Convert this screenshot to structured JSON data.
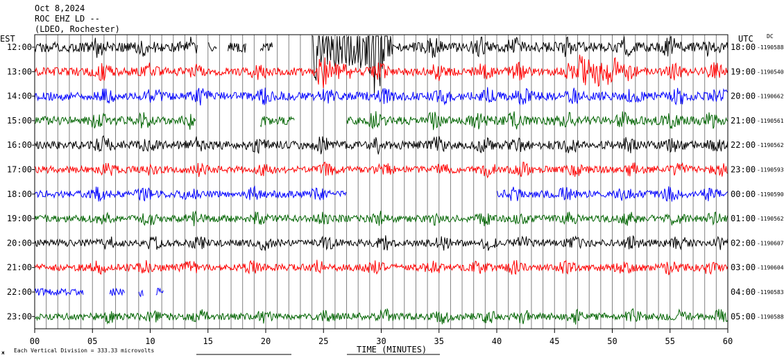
{
  "header": {
    "date": "Oct 8,2024",
    "station": "ROC EHZ LD --",
    "network": "(LDEO, Rochester)"
  },
  "left_zone": "EST",
  "right_zone": "UTC",
  "dc_label": "DC",
  "footer": {
    "scale_note": "Each Vertical Division = 333.33 microvolts",
    "corner_mark": "ж"
  },
  "chart_data": {
    "type": "line",
    "title": "",
    "xlabel": "TIME (MINUTES)",
    "ylabel": "",
    "xlim": [
      0,
      60
    ],
    "x_ticks": [
      "00",
      "05",
      "10",
      "15",
      "20",
      "25",
      "30",
      "35",
      "40",
      "45",
      "50",
      "55",
      "60"
    ],
    "grid": "vertical every minute",
    "colors_cycle": [
      "#000000",
      "#ff0000",
      "#0000ff",
      "#006400"
    ],
    "rows": [
      {
        "est": "12:00",
        "utc": "18:00",
        "dc": "-1190588",
        "color": "#000000",
        "amp": 7,
        "gaps": [
          [
            14.1,
            15.0
          ],
          [
            15.8,
            16.7
          ],
          [
            18.3,
            19.5
          ],
          [
            20.6,
            24.0
          ]
        ],
        "burst": [
          [
            24.0,
            31.0,
            4.5
          ]
        ]
      },
      {
        "est": "13:00",
        "utc": "19:00",
        "dc": "-1190540",
        "color": "#ff0000",
        "amp": 6,
        "gaps": [],
        "burst": [
          [
            24.5,
            27.5,
            2.0
          ],
          [
            47.0,
            50.5,
            3.5
          ]
        ]
      },
      {
        "est": "14:00",
        "utc": "20:00",
        "dc": "-1190662",
        "color": "#0000ff",
        "amp": 6,
        "gaps": [],
        "burst": []
      },
      {
        "est": "15:00",
        "utc": "21:00",
        "dc": "-1190561",
        "color": "#006400",
        "amp": 6,
        "gaps": [
          [
            14.0,
            19.5
          ],
          [
            22.5,
            27.0
          ]
        ],
        "burst": []
      },
      {
        "est": "16:00",
        "utc": "22:00",
        "dc": "-1190562",
        "color": "#000000",
        "amp": 6,
        "gaps": [],
        "burst": []
      },
      {
        "est": "17:00",
        "utc": "23:00",
        "dc": "-1190593",
        "color": "#ff0000",
        "amp": 5,
        "gaps": [],
        "burst": []
      },
      {
        "est": "18:00",
        "utc": "00:00",
        "dc": "-1190590",
        "color": "#0000ff",
        "amp": 5,
        "gaps": [
          [
            27.0,
            40.0
          ]
        ],
        "burst": []
      },
      {
        "est": "19:00",
        "utc": "01:00",
        "dc": "-1190562",
        "color": "#006400",
        "amp": 5,
        "gaps": [],
        "burst": []
      },
      {
        "est": "20:00",
        "utc": "02:00",
        "dc": "-1190607",
        "color": "#000000",
        "amp": 5,
        "gaps": [],
        "burst": []
      },
      {
        "est": "21:00",
        "utc": "03:00",
        "dc": "-1190604",
        "color": "#ff0000",
        "amp": 5,
        "gaps": [],
        "burst": []
      },
      {
        "est": "22:00",
        "utc": "04:00",
        "dc": "-1190583",
        "color": "#0000ff",
        "amp": 5,
        "gaps": [
          [
            4.2,
            6.5
          ],
          [
            7.8,
            9.0
          ],
          [
            9.4,
            10.5
          ],
          [
            11.2,
            60.0
          ]
        ],
        "burst": []
      },
      {
        "est": "23:00",
        "utc": "05:00",
        "dc": "-1190588",
        "color": "#006400",
        "amp": 5,
        "gaps": [],
        "burst": []
      }
    ]
  }
}
